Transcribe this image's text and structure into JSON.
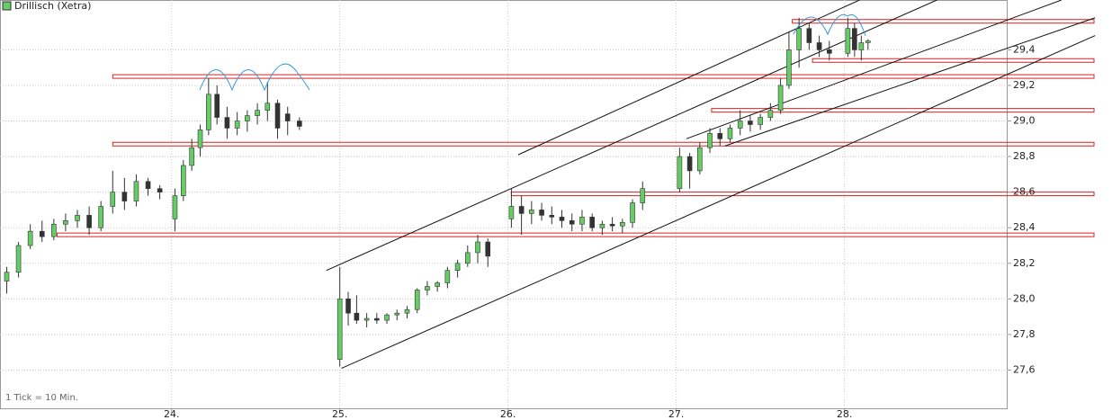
{
  "chart_data": {
    "type": "candlestick",
    "title": "Drillisch (Xetra)",
    "note": "1 Tick = 10 Min.",
    "up_color": "#66cc66",
    "down_color": "#333333",
    "level_color": "#d62020",
    "trend_color": "#111111",
    "grid": true,
    "xlim": [
      22.98,
      28.97
    ],
    "ylim": [
      27.38,
      29.68
    ],
    "xticks": [
      {
        "value": 24,
        "label": "24."
      },
      {
        "value": 25,
        "label": "25."
      },
      {
        "value": 26,
        "label": "26."
      },
      {
        "value": 27,
        "label": "27."
      },
      {
        "value": 28,
        "label": "28."
      }
    ],
    "yticks": [
      {
        "value": 27.6,
        "label": "27,6"
      },
      {
        "value": 27.8,
        "label": "27,8"
      },
      {
        "value": 28.0,
        "label": "28,0"
      },
      {
        "value": 28.2,
        "label": "28,2"
      },
      {
        "value": 28.4,
        "label": "28,4"
      },
      {
        "value": 28.6,
        "label": "28,6"
      },
      {
        "value": 28.8,
        "label": "28,8"
      },
      {
        "value": 29.0,
        "label": "29,0"
      },
      {
        "value": 29.2,
        "label": "29,2"
      },
      {
        "value": 29.4,
        "label": "29,4"
      }
    ],
    "x": [
      23.02,
      23.09,
      23.16,
      23.23,
      23.3,
      23.37,
      23.44,
      23.51,
      23.58,
      23.65,
      23.72,
      23.79,
      23.86,
      23.93,
      24.02,
      24.07,
      24.12,
      24.17,
      24.22,
      24.27,
      24.33,
      24.39,
      24.45,
      24.51,
      24.57,
      24.63,
      24.69,
      24.76,
      25.0,
      25.05,
      25.1,
      25.16,
      25.22,
      25.28,
      25.34,
      25.4,
      25.46,
      25.52,
      25.58,
      25.64,
      25.7,
      25.76,
      25.82,
      25.88,
      26.02,
      26.08,
      26.14,
      26.2,
      26.26,
      26.32,
      26.38,
      26.44,
      26.5,
      26.56,
      26.62,
      26.68,
      26.74,
      26.8,
      27.02,
      27.08,
      27.14,
      27.2,
      27.26,
      27.32,
      27.38,
      27.44,
      27.5,
      27.56,
      27.62,
      27.67,
      27.73,
      27.79,
      27.85,
      27.91,
      28.02,
      28.06,
      28.1,
      28.14
    ],
    "open": [
      28.1,
      28.15,
      28.3,
      28.38,
      28.35,
      28.42,
      28.44,
      28.47,
      28.4,
      28.52,
      28.6,
      28.55,
      28.66,
      28.62,
      28.45,
      28.58,
      28.75,
      28.85,
      28.95,
      29.15,
      29.02,
      28.96,
      29.0,
      29.03,
      29.06,
      29.1,
      29.04,
      29.0,
      27.66,
      28.0,
      27.92,
      27.88,
      27.89,
      27.88,
      27.91,
      27.92,
      27.94,
      28.05,
      28.07,
      28.09,
      28.16,
      28.2,
      28.26,
      28.32,
      28.45,
      28.52,
      28.48,
      28.5,
      28.47,
      28.46,
      28.44,
      28.42,
      28.46,
      28.4,
      28.42,
      28.41,
      28.43,
      28.54,
      28.62,
      28.8,
      28.72,
      28.85,
      28.93,
      28.9,
      28.96,
      29.0,
      28.98,
      29.02,
      29.06,
      29.2,
      29.4,
      29.52,
      29.44,
      29.4,
      29.38,
      29.52,
      29.4,
      29.44
    ],
    "high": [
      28.18,
      28.32,
      28.42,
      28.44,
      28.45,
      28.48,
      28.5,
      28.52,
      28.55,
      28.72,
      28.68,
      28.7,
      28.68,
      28.64,
      28.62,
      28.78,
      28.9,
      28.98,
      29.24,
      29.2,
      29.08,
      29.05,
      29.06,
      29.1,
      29.22,
      29.12,
      29.08,
      29.02,
      28.18,
      28.04,
      28.02,
      27.92,
      27.92,
      27.92,
      27.94,
      27.96,
      28.06,
      28.1,
      28.1,
      28.18,
      28.22,
      28.3,
      28.36,
      28.34,
      28.62,
      28.58,
      28.55,
      28.54,
      28.52,
      28.5,
      28.48,
      28.5,
      28.48,
      28.44,
      28.46,
      28.45,
      28.56,
      28.66,
      28.85,
      28.82,
      28.88,
      28.96,
      28.96,
      28.98,
      29.06,
      29.03,
      29.04,
      29.1,
      29.24,
      29.5,
      29.58,
      29.55,
      29.48,
      29.45,
      29.58,
      29.55,
      29.48,
      29.46
    ],
    "low": [
      28.03,
      28.12,
      28.28,
      28.32,
      28.33,
      28.38,
      28.4,
      28.36,
      28.38,
      28.48,
      28.5,
      28.52,
      28.58,
      28.56,
      28.38,
      28.55,
      28.72,
      28.8,
      28.92,
      28.98,
      28.9,
      28.92,
      28.94,
      28.98,
      29.0,
      28.9,
      28.92,
      28.95,
      27.62,
      27.85,
      27.86,
      27.84,
      27.86,
      27.86,
      27.88,
      27.89,
      27.92,
      28.02,
      28.04,
      28.06,
      28.12,
      28.18,
      28.2,
      28.18,
      28.4,
      28.36,
      28.42,
      28.44,
      28.42,
      28.4,
      28.38,
      28.38,
      28.38,
      28.36,
      28.38,
      28.37,
      28.4,
      28.5,
      28.6,
      28.62,
      28.7,
      28.82,
      28.86,
      28.88,
      28.92,
      28.94,
      28.95,
      29.0,
      29.04,
      29.18,
      29.3,
      29.4,
      29.36,
      29.34,
      29.36,
      29.36,
      29.34,
      29.4
    ],
    "close": [
      28.15,
      28.3,
      28.38,
      28.35,
      28.42,
      28.44,
      28.47,
      28.4,
      28.52,
      28.6,
      28.55,
      28.66,
      28.62,
      28.6,
      28.58,
      28.75,
      28.85,
      28.95,
      29.15,
      29.02,
      28.96,
      29.0,
      29.03,
      29.06,
      29.1,
      28.96,
      29.0,
      28.97,
      28.0,
      27.92,
      27.88,
      27.89,
      27.88,
      27.91,
      27.92,
      27.94,
      28.05,
      28.07,
      28.09,
      28.16,
      28.2,
      28.26,
      28.32,
      28.24,
      28.52,
      28.48,
      28.5,
      28.47,
      28.46,
      28.44,
      28.42,
      28.46,
      28.4,
      28.42,
      28.41,
      28.43,
      28.54,
      28.62,
      28.8,
      28.72,
      28.85,
      28.93,
      28.9,
      28.96,
      29.0,
      28.98,
      29.02,
      29.06,
      29.2,
      29.4,
      29.52,
      29.44,
      29.4,
      29.38,
      29.52,
      29.4,
      29.44,
      29.45
    ],
    "levels": [
      {
        "value": 29.56,
        "start": 27.69
      },
      {
        "value": 29.34,
        "start": 27.81
      },
      {
        "value": 29.25,
        "start": 23.65
      },
      {
        "value": 29.06,
        "start": 27.21
      },
      {
        "value": 28.87,
        "start": 23.65
      },
      {
        "value": 28.59,
        "start": 26.02
      },
      {
        "value": 28.36,
        "start": 23.32
      }
    ],
    "trendlines": [
      {
        "x": [
          24.92,
          28.55
        ],
        "y": [
          28.16,
          29.68
        ]
      },
      {
        "x": [
          25.01,
          29.49
        ],
        "y": [
          27.61,
          29.48
        ]
      },
      {
        "x": [
          26.06,
          28.09
        ],
        "y": [
          28.81,
          29.68
        ]
      },
      {
        "x": [
          27.06,
          29.29
        ],
        "y": [
          28.9,
          29.68
        ]
      },
      {
        "x": [
          27.29,
          29.49
        ],
        "y": [
          28.86,
          29.58
        ]
      }
    ]
  }
}
